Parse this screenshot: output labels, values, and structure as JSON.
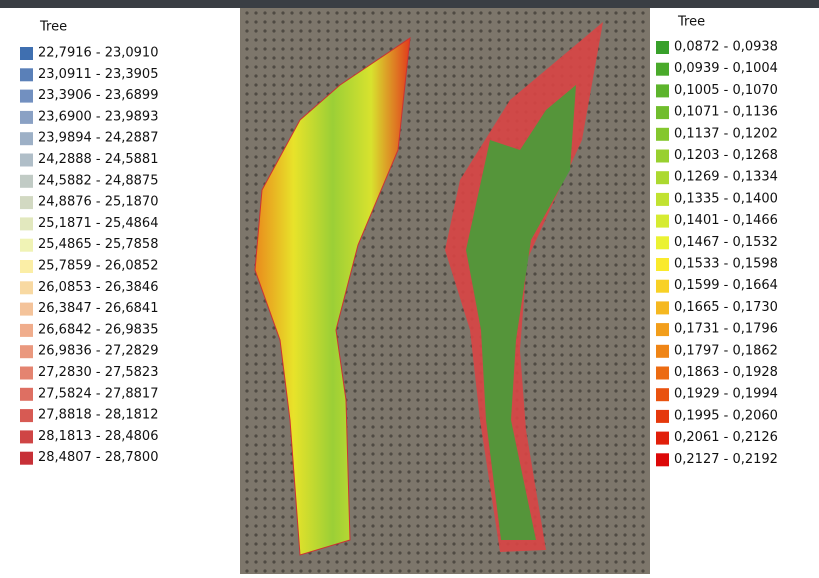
{
  "legends": [
    {
      "title": "Tree",
      "items": [
        {
          "label": "22,7916 - 23,0910",
          "color": "#3f6fb0"
        },
        {
          "label": "23,0911 - 23,3905",
          "color": "#5a80b8"
        },
        {
          "label": "23,3906 - 23,6899",
          "color": "#7290c0"
        },
        {
          "label": "23,6900 - 23,9893",
          "color": "#8aa1c4"
        },
        {
          "label": "23,9894 - 24,2887",
          "color": "#9db0c6"
        },
        {
          "label": "24,2888 - 24,5881",
          "color": "#b0bec8"
        },
        {
          "label": "24,5882 - 24,8875",
          "color": "#c1cbc5"
        },
        {
          "label": "24,8876 - 25,1870",
          "color": "#d2d9c2"
        },
        {
          "label": "25,1871 - 25,4864",
          "color": "#e2e8be"
        },
        {
          "label": "25,4865 - 25,7858",
          "color": "#f0f3b5"
        },
        {
          "label": "25,7859 - 26,0852",
          "color": "#fbeea6"
        },
        {
          "label": "26,0853 - 26,3846",
          "color": "#f8d9a2"
        },
        {
          "label": "26,3847 - 26,6841",
          "color": "#f4c39a"
        },
        {
          "label": "26,6842 - 26,9835",
          "color": "#f0ad8c"
        },
        {
          "label": "26,9836 - 27,2829",
          "color": "#ea987e"
        },
        {
          "label": "27,2830 - 27,5823",
          "color": "#e48470"
        },
        {
          "label": "27,5824 - 27,8817",
          "color": "#de6f62"
        },
        {
          "label": "27,8818 - 28,1812",
          "color": "#d75a53"
        },
        {
          "label": "28,1813 - 28,4806",
          "color": "#cf4545"
        },
        {
          "label": "28,4807 - 28,7800",
          "color": "#c73037"
        }
      ]
    },
    {
      "title": "Tree",
      "items": [
        {
          "label": "0,0872 - 0,0938",
          "color": "#38a02a"
        },
        {
          "label": "0,0939 - 0,1004",
          "color": "#4aaa2b"
        },
        {
          "label": "0,1005 - 0,1070",
          "color": "#5db42c"
        },
        {
          "label": "0,1071 - 0,1136",
          "color": "#70bd2d"
        },
        {
          "label": "0,1137 - 0,1202",
          "color": "#84c72e"
        },
        {
          "label": "0,1203 - 0,1268",
          "color": "#98d02f"
        },
        {
          "label": "0,1269 - 0,1334",
          "color": "#acd930"
        },
        {
          "label": "0,1335 - 0,1400",
          "color": "#c1e231"
        },
        {
          "label": "0,1401 - 0,1466",
          "color": "#d6eb32"
        },
        {
          "label": "0,1467 - 0,1532",
          "color": "#ebf233"
        },
        {
          "label": "0,1533 - 0,1598",
          "color": "#faea2c"
        },
        {
          "label": "0,1599 - 0,1664",
          "color": "#f8d126"
        },
        {
          "label": "0,1665 - 0,1730",
          "color": "#f5b820"
        },
        {
          "label": "0,1731 - 0,1796",
          "color": "#f29e1b"
        },
        {
          "label": "0,1797 - 0,1862",
          "color": "#ef8516"
        },
        {
          "label": "0,1863 - 0,1928",
          "color": "#ec6b12"
        },
        {
          "label": "0,1929 - 0,1994",
          "color": "#e9520f"
        },
        {
          "label": "0,1995 - 0,2060",
          "color": "#e5380c"
        },
        {
          "label": "0,2061 - 0,2126",
          "color": "#e11f0a"
        },
        {
          "label": "0,2127 - 0,2192",
          "color": "#dc0808"
        }
      ]
    }
  ]
}
